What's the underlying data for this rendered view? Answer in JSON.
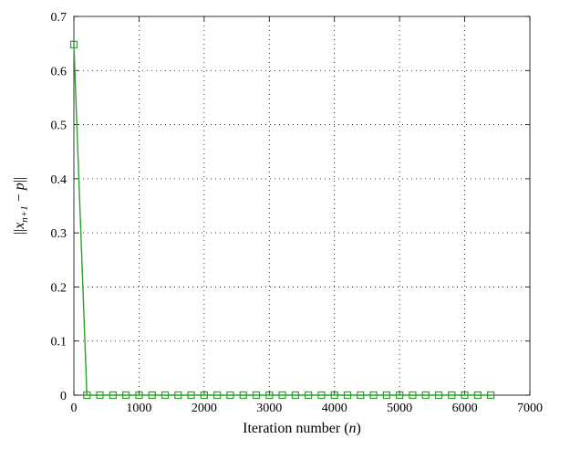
{
  "chart_data": {
    "type": "line",
    "xlabel": "Iteration number (n)",
    "ylabel": "||x_{n+1} − p||",
    "xlim": [
      0,
      7000
    ],
    "ylim": [
      0,
      0.7
    ],
    "xticks": [
      "0",
      "1000",
      "2000",
      "3000",
      "4000",
      "5000",
      "6000",
      "7000"
    ],
    "yticks": [
      "0",
      "0.1",
      "0.2",
      "0.3",
      "0.4",
      "0.5",
      "0.6",
      "0.7"
    ],
    "grid": true,
    "series": [
      {
        "color": "#2ca02c",
        "marker": "square",
        "x": [
          0,
          200,
          400,
          600,
          800,
          1000,
          1200,
          1400,
          1600,
          1800,
          2000,
          2200,
          2400,
          2600,
          2800,
          3000,
          3200,
          3400,
          3600,
          3800,
          4000,
          4200,
          4400,
          4600,
          4800,
          5000,
          5200,
          5400,
          5600,
          5800,
          6000,
          6200,
          6400
        ],
        "y": [
          0.648,
          0,
          0,
          0,
          0,
          0,
          0,
          0,
          0,
          0,
          0,
          0,
          0,
          0,
          0,
          0,
          0,
          0,
          0,
          0,
          0,
          0,
          0,
          0,
          0,
          0,
          0,
          0,
          0,
          0,
          0,
          0,
          0
        ]
      }
    ]
  }
}
